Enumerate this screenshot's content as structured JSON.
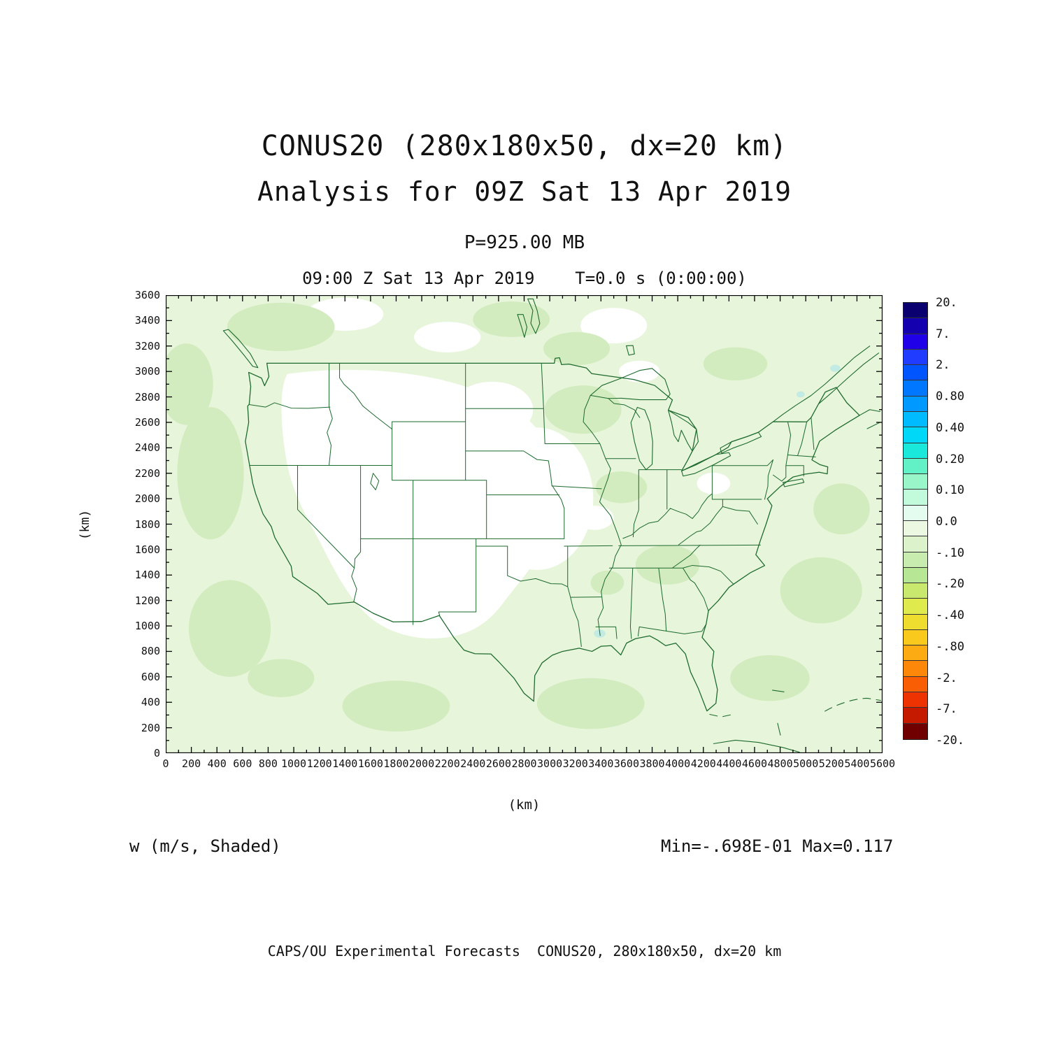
{
  "header": {
    "title_line1": "CONUS20 (280x180x50, dx=20 km)",
    "title_line2": "Analysis for 09Z Sat 13 Apr 2019",
    "level_label": "P=925.00 MB",
    "time_label": "09:00 Z Sat 13 Apr 2019    T=0.0 s (0:00:00)"
  },
  "footer": {
    "field_label": "w (m/s, Shaded)",
    "minmax_label": "Min=-.698E-01 Max=0.117",
    "credit": "CAPS/OU Experimental Forecasts  CONUS20, 280x180x50, dx=20 km"
  },
  "axes": {
    "x_title": "(km)",
    "y_title": "(km)",
    "x_tick_labels": [
      "0",
      "200",
      "400",
      "600",
      "800",
      "1000",
      "1200",
      "1400",
      "1600",
      "1800",
      "2000",
      "2200",
      "2400",
      "2600",
      "2800",
      "3000",
      "3200",
      "3400",
      "3600",
      "3800",
      "4000",
      "4200",
      "4400",
      "4600",
      "4800",
      "5000",
      "5200",
      "5400",
      "5600"
    ],
    "y_tick_labels": [
      "0",
      "200",
      "400",
      "600",
      "800",
      "1000",
      "1200",
      "1400",
      "1600",
      "1800",
      "2000",
      "2200",
      "2400",
      "2600",
      "2800",
      "3000",
      "3200",
      "3400",
      "3600"
    ]
  },
  "colorbar": {
    "labels": [
      "20.",
      "7.",
      "2.",
      "0.80",
      "0.40",
      "0.20",
      "0.10",
      "0.0",
      "-.10",
      "-.20",
      "-.40",
      "-.80",
      "-2.",
      "-7.",
      "-20."
    ],
    "colors": [
      "#0a0070",
      "#1500b0",
      "#2000e8",
      "#1f3cff",
      "#0055ff",
      "#0077ff",
      "#0099ff",
      "#00bbff",
      "#00d8f8",
      "#1ae8da",
      "#62f1c6",
      "#98f6c8",
      "#c2fadc",
      "#e3fcef",
      "#ecf8e2",
      "#dcf2cb",
      "#c8ecb0",
      "#b7e795",
      "#c9e96e",
      "#dfea4c",
      "#eedd2f",
      "#f9c91e",
      "#fcab12",
      "#fc8709",
      "#f95e04",
      "#ee3302",
      "#c61a00",
      "#700000"
    ]
  },
  "colors": {
    "boundary": "#1d6a2e",
    "shade_base": "#e7f5da",
    "shade_light": "#ffffff",
    "shade_dark": "#d3ecbf",
    "shade_cyan": "#c2ebe3",
    "frame": "#000000"
  },
  "chart_data": {
    "type": "heatmap",
    "title": "CONUS20 (280x180x50, dx=20 km)",
    "subtitle": "Analysis for 09Z Sat 13 Apr 2019",
    "field": "w",
    "units": "m/s",
    "render_style": "shaded contour map over CONUS with state boundaries",
    "pressure_level": "P=925.00 MB",
    "valid_time": "09:00 Z Sat 13 Apr 2019",
    "forecast_time": "T=0.0 s (0:00:00)",
    "grid": "280x180x50, dx=20 km",
    "min": -0.0698,
    "max": 0.117,
    "xlabel": "(km)",
    "ylabel": "(km)",
    "xlim": [
      0,
      5600
    ],
    "ylim": [
      0,
      3600
    ],
    "x_tick_step_km": 200,
    "y_tick_step_km": 200,
    "colorbar_levels": [
      20,
      7,
      2,
      0.8,
      0.4,
      0.2,
      0.1,
      0.0,
      -0.1,
      -0.2,
      -0.4,
      -0.8,
      -2,
      -7,
      -20
    ],
    "legend_position": "right",
    "grid_lines": false,
    "field_summary": "Vertical velocity near zero everywhere: pale green shading (0.0 to -.10 bin) over oceans, Canada, Mexico and the eastern/central US; unshaded (white) areas over the interior western US, central plains and scattered patches; a few tiny cyan (weakly positive) specks near Louisiana and the Northeast"
  }
}
